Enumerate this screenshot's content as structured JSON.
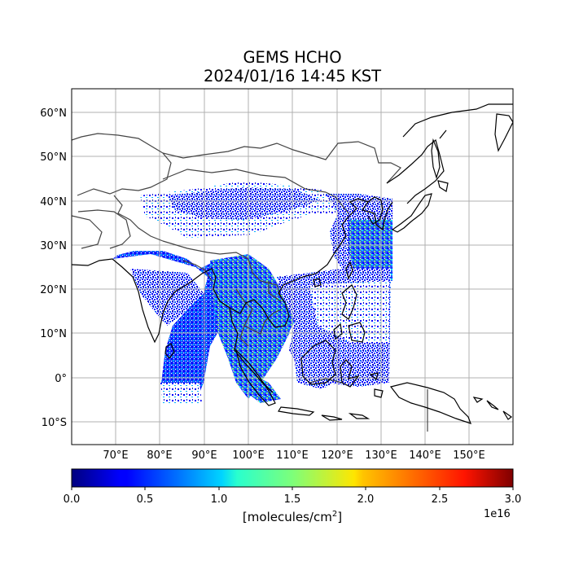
{
  "title_line1": "GEMS HCHO",
  "title_line2": "2024/01/16 14:45 KST",
  "lat_ticks": [
    "60°N",
    "50°N",
    "40°N",
    "30°N",
    "20°N",
    "10°N",
    "0°",
    "10°S"
  ],
  "lon_ticks": [
    "70°E",
    "80°E",
    "90°E",
    "100°E",
    "110°E",
    "120°E",
    "130°E",
    "140°E",
    "150°E"
  ],
  "colorbar": {
    "colormap": "jet",
    "ticks": [
      "0.0",
      "0.5",
      "1.0",
      "1.5",
      "2.0",
      "2.5",
      "3.0"
    ],
    "units_label": "[molecules/cm",
    "units_sup": "2",
    "units_close": "]",
    "exponent": "1e16"
  },
  "colors": {
    "coastline": "#000000",
    "borders": "#444444",
    "gridlines": "#b0b0b0"
  }
}
